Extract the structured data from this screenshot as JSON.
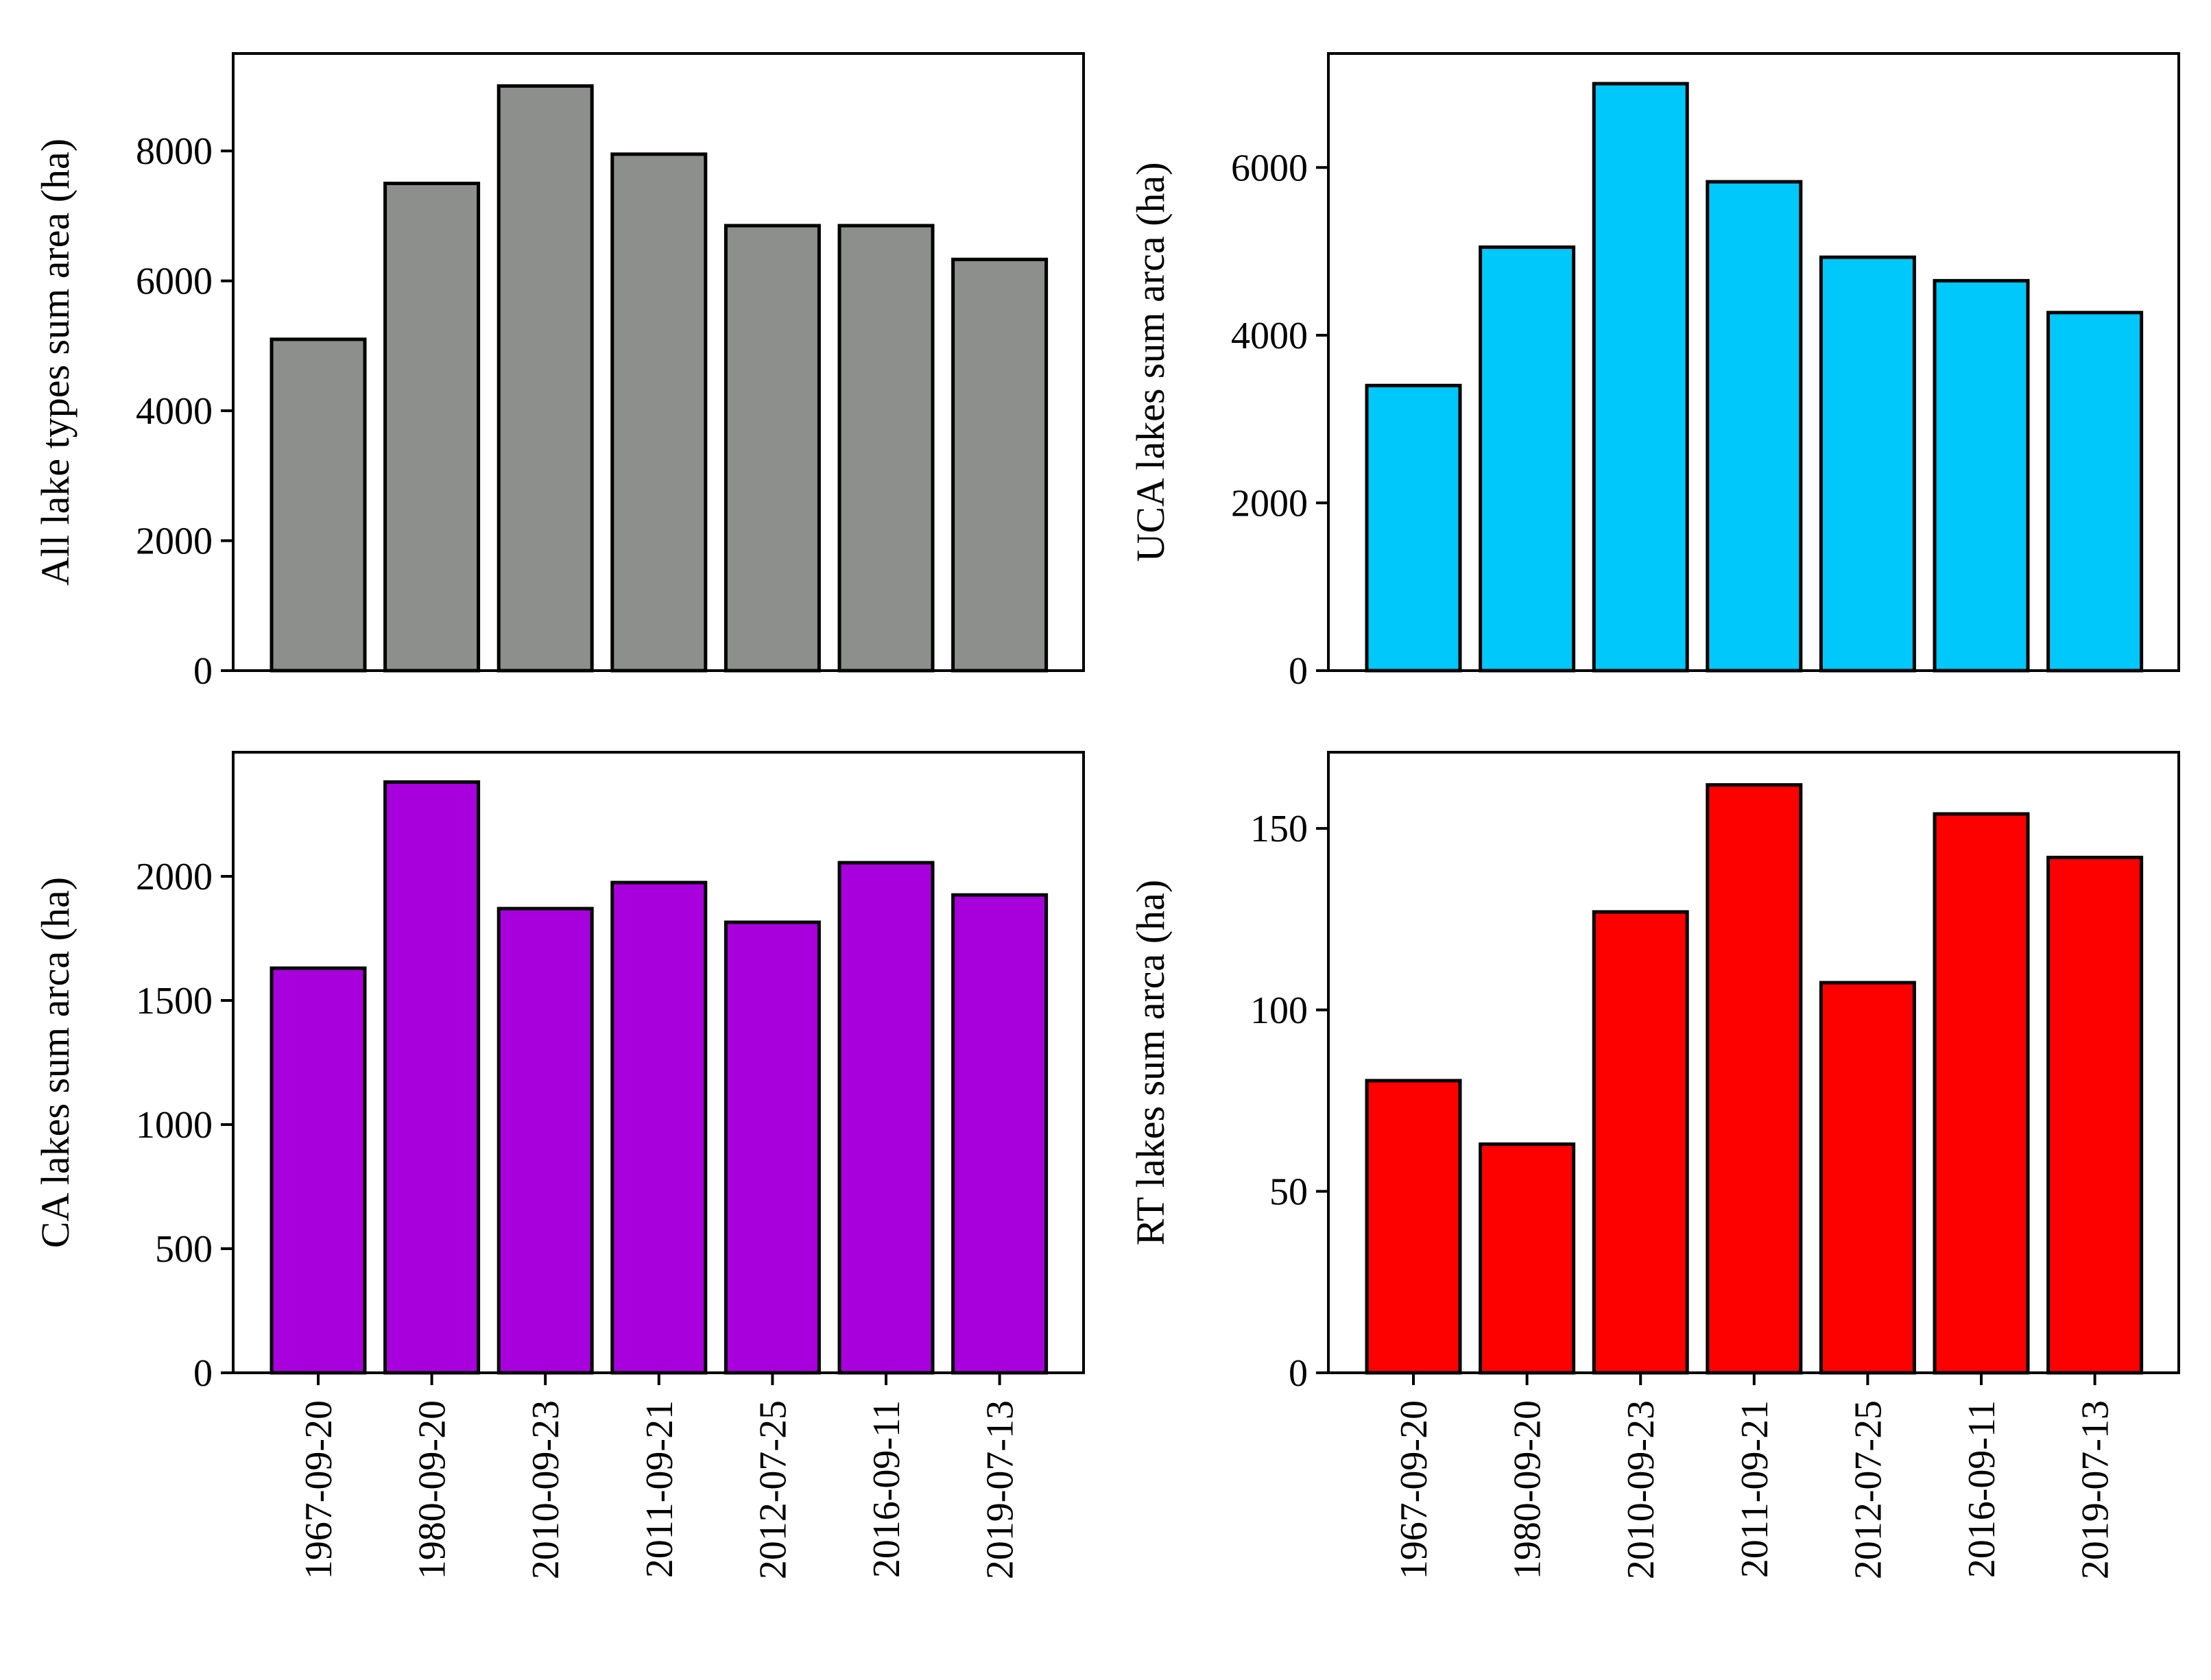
{
  "chart_data": [
    {
      "type": "bar",
      "panel": "top-left",
      "categories": [
        "1967-09-20",
        "1980-09-20",
        "2010-09-23",
        "2011-09-21",
        "2012-07-25",
        "2016-09-11",
        "2019-07-13"
      ],
      "values": [
        5100,
        7500,
        9000,
        7950,
        6850,
        6850,
        6330
      ],
      "ylabel": "All lake types sum area (ha)",
      "ylim": [
        0,
        9500
      ],
      "yticks": [
        0,
        2000,
        4000,
        6000,
        8000
      ],
      "color": "#8c8f8b",
      "show_xticklabels": false
    },
    {
      "type": "bar",
      "panel": "top-right",
      "categories": [
        "1967-09-20",
        "1980-09-20",
        "2010-09-23",
        "2011-09-21",
        "2012-07-25",
        "2016-09-11",
        "2019-07-13"
      ],
      "values": [
        3400,
        5050,
        7000,
        5830,
        4930,
        4650,
        4270
      ],
      "ylabel": "UCA lakes sum arca (ha)",
      "ylim": [
        0,
        7360
      ],
      "yticks": [
        0,
        2000,
        4000,
        6000
      ],
      "color": "#00c8fb",
      "show_xticklabels": false
    },
    {
      "type": "bar",
      "panel": "bottom-left",
      "categories": [
        "1967-09-20",
        "1980-09-20",
        "2010-09-23",
        "2011-09-21",
        "2012-07-25",
        "2016-09-11",
        "2019-07-13"
      ],
      "values": [
        1630,
        2380,
        1870,
        1975,
        1815,
        2055,
        1925
      ],
      "ylabel": "CA lakes sum arca (ha)",
      "ylim": [
        0,
        2500
      ],
      "yticks": [
        0,
        500,
        1000,
        1500,
        2000
      ],
      "color": "#a800dc",
      "show_xticklabels": true
    },
    {
      "type": "bar",
      "panel": "bottom-right",
      "categories": [
        "1967-09-20",
        "1980-09-20",
        "2010-09-23",
        "2011-09-21",
        "2012-07-25",
        "2016-09-11",
        "2019-07-13"
      ],
      "values": [
        80.5,
        63,
        127,
        162,
        107.5,
        154,
        142
      ],
      "ylabel": "RT lakes sum arca (ha)",
      "ylim": [
        0,
        171
      ],
      "yticks": [
        0,
        50,
        100,
        150
      ],
      "color": "#fd0000",
      "show_xticklabels": true
    }
  ]
}
